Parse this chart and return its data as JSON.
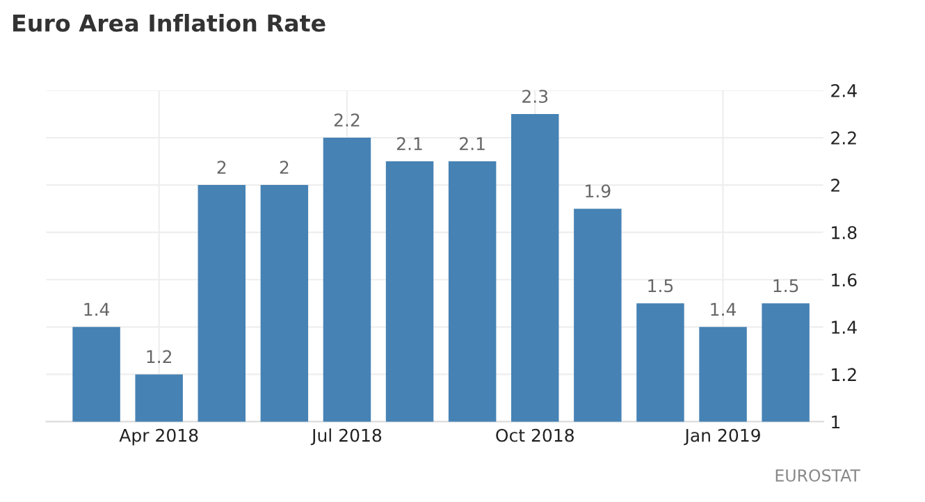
{
  "chart_data": {
    "type": "bar",
    "title": "Euro Area Inflation Rate",
    "categories": [
      null,
      "Apr 2018",
      null,
      null,
      "Jul 2018",
      null,
      null,
      "Oct 2018",
      null,
      null,
      "Jan 2019",
      null
    ],
    "values": [
      1.4,
      1.2,
      2,
      2,
      2.2,
      2.1,
      2.1,
      2.3,
      1.9,
      1.5,
      1.4,
      1.5
    ],
    "color": "#4682b4",
    "ylim": [
      1,
      2.4
    ],
    "yticks": [
      1,
      1.2,
      1.4,
      1.6,
      1.8,
      2,
      2.2,
      2.4
    ],
    "grid": true,
    "data_labels": true,
    "annotations": [
      "EUROSTAT"
    ]
  }
}
